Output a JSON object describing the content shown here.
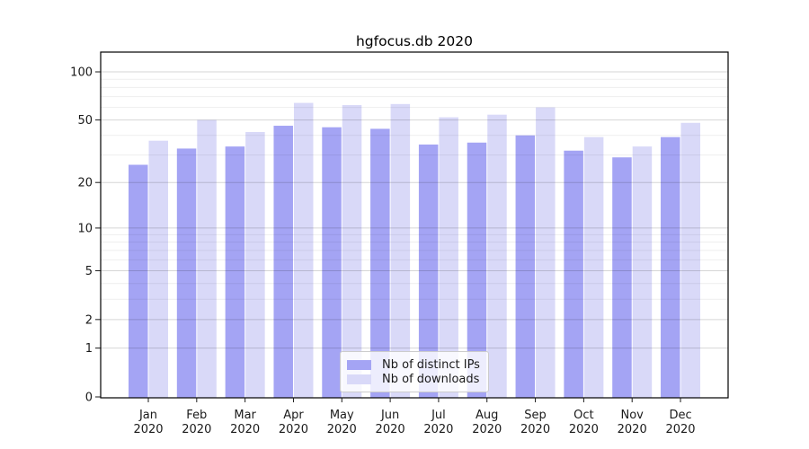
{
  "chart_data": {
    "type": "bar",
    "title": "hgfocus.db 2020",
    "categories": [
      "Jan",
      "Feb",
      "Mar",
      "Apr",
      "May",
      "Jun",
      "Jul",
      "Aug",
      "Sep",
      "Oct",
      "Nov",
      "Dec"
    ],
    "category_year": "2020",
    "series": [
      {
        "name": "Nb of distinct IPs",
        "color": "#a4a4f4",
        "values": [
          26,
          33,
          34,
          46,
          45,
          44,
          35,
          36,
          40,
          32,
          29,
          39
        ]
      },
      {
        "name": "Nb of downloads",
        "color": "#d9d9f8",
        "values": [
          37,
          50,
          42,
          64,
          62,
          63,
          52,
          54,
          60,
          39,
          34,
          48
        ]
      }
    ],
    "y_axis": {
      "scale": "log1p",
      "tick_labels": [
        100,
        50,
        20,
        10,
        5,
        2,
        1,
        0
      ],
      "minor_gridlines": [
        3,
        4,
        6,
        7,
        8,
        9,
        30,
        40,
        60,
        70,
        80,
        90
      ],
      "ylim": [
        0,
        133
      ]
    },
    "x_axis": {
      "tick_line1": "month",
      "tick_line2": "year"
    },
    "legend": {
      "position": "lower center",
      "labels": [
        "Nb of distinct IPs",
        "Nb of downloads"
      ]
    },
    "grid": true,
    "colors": {
      "frame": "#000000",
      "tick_text": "#1a1a1a",
      "background": "#ffffff"
    }
  }
}
